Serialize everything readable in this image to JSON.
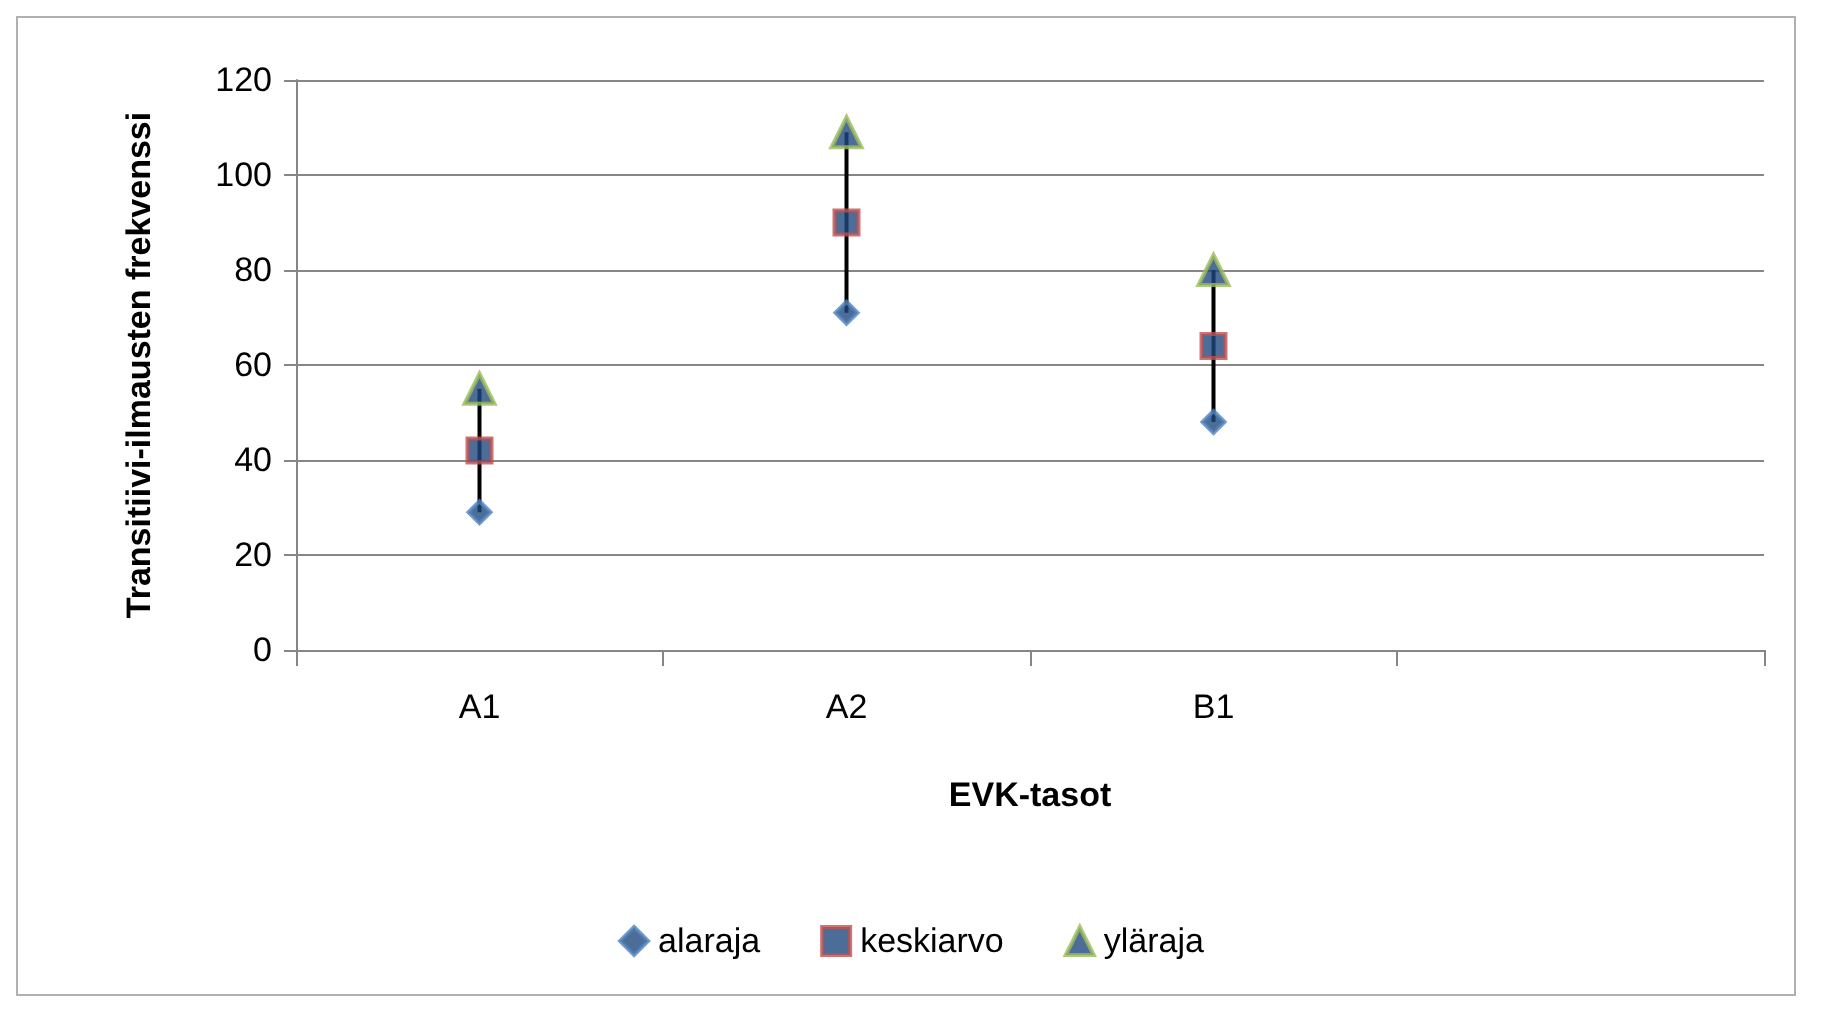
{
  "chart_data": {
    "type": "scatter",
    "xlabel": "EVK-tasot",
    "ylabel": "Transitiivi-ilmausten frekvenssi",
    "categories": [
      "A1",
      "A2",
      "B1",
      null
    ],
    "series": [
      {
        "name": "alaraja",
        "color": "#4f81bd",
        "marker": "diamond",
        "values": [
          29,
          71,
          48,
          null
        ]
      },
      {
        "name": "keskiarvo",
        "color": "#c0504d",
        "marker": "square",
        "values": [
          42,
          90,
          64,
          null
        ]
      },
      {
        "name": "yläraja",
        "color": "#9bbb59",
        "marker": "triangle",
        "values": [
          55,
          109,
          80,
          null
        ]
      }
    ],
    "ylim": [
      0,
      120
    ],
    "yticks": [
      0,
      20,
      40,
      60,
      80,
      100,
      120
    ],
    "grid": "y",
    "legend": "bottom"
  }
}
